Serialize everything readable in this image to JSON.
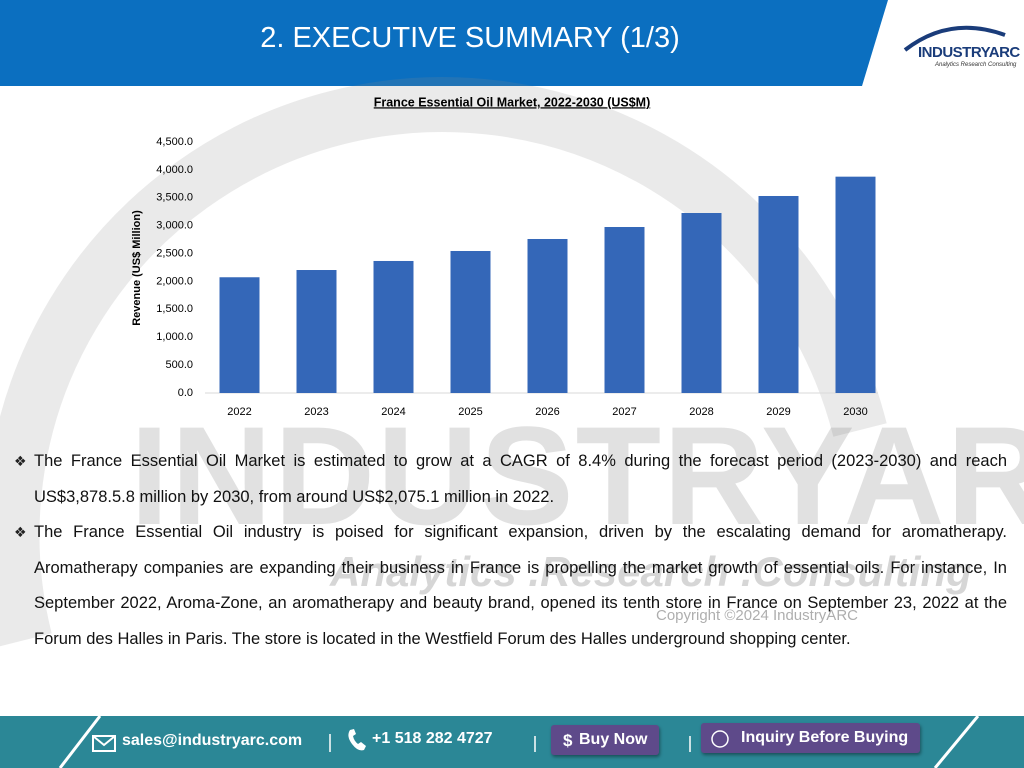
{
  "header": {
    "title": "2. EXECUTIVE SUMMARY (1/3)",
    "logo": "INDUSTRYARC",
    "logo_tagline": "Analytics Research Consulting"
  },
  "chart_data": {
    "type": "bar",
    "title": "France Essential Oil Market, 2022-2030 (US$M)",
    "y_label": "Revenue (US$ Million)",
    "categories": [
      "2022",
      "2023",
      "2024",
      "2025",
      "2026",
      "2027",
      "2028",
      "2029",
      "2030"
    ],
    "values": [
      2075.1,
      2205,
      2367,
      2546,
      2761,
      2976,
      3227,
      3532,
      3878.5
    ],
    "color": "#3467b8",
    "ylim": [
      0,
      4500
    ],
    "yticks": [
      {
        "value": 0,
        "label": "0.0"
      },
      {
        "value": 500,
        "label": "500.0"
      },
      {
        "value": 1000,
        "label": "1,000.0"
      },
      {
        "value": 1500,
        "label": "1,500.0"
      },
      {
        "value": 2000,
        "label": "2,000.0"
      },
      {
        "value": 2500,
        "label": "2,500.0"
      },
      {
        "value": 3000,
        "label": "3,000.0"
      },
      {
        "value": 3500,
        "label": "3,500.0"
      },
      {
        "value": 4000,
        "label": "4,000.0"
      },
      {
        "value": 4500,
        "label": "4,500.0"
      }
    ],
    "grid": false
  },
  "watermark": {
    "brand": "INDUSTRYARC",
    "tagline": "Analytics .Research .Consulting",
    "copyright": "Copyright ©2024 IndustryARC"
  },
  "bullets": [
    "The France Essential Oil Market is estimated to grow at a CAGR of 8.4% during the forecast period (2023-2030) and reach US$3,878.5.8 million by 2030, from around US$2,075.1 million in 2022.",
    "The France Essential Oil industry is poised for significant expansion, driven by the escalating demand for aromatherapy. Aromatherapy companies are expanding their business in France is propelling the market growth of essential oils. For instance, In September 2022, Aroma-Zone, an aromatherapy and beauty brand, opened its tenth store in France on September 23, 2022 at the Forum des Halles in Paris. The store is located in the Westfield Forum des Halles underground shopping center."
  ],
  "footer": {
    "email": "sales@industryarc.com",
    "phone": "+1 518 282 4727",
    "buy": "Buy Now",
    "inquiry": "Inquiry Before Buying"
  }
}
